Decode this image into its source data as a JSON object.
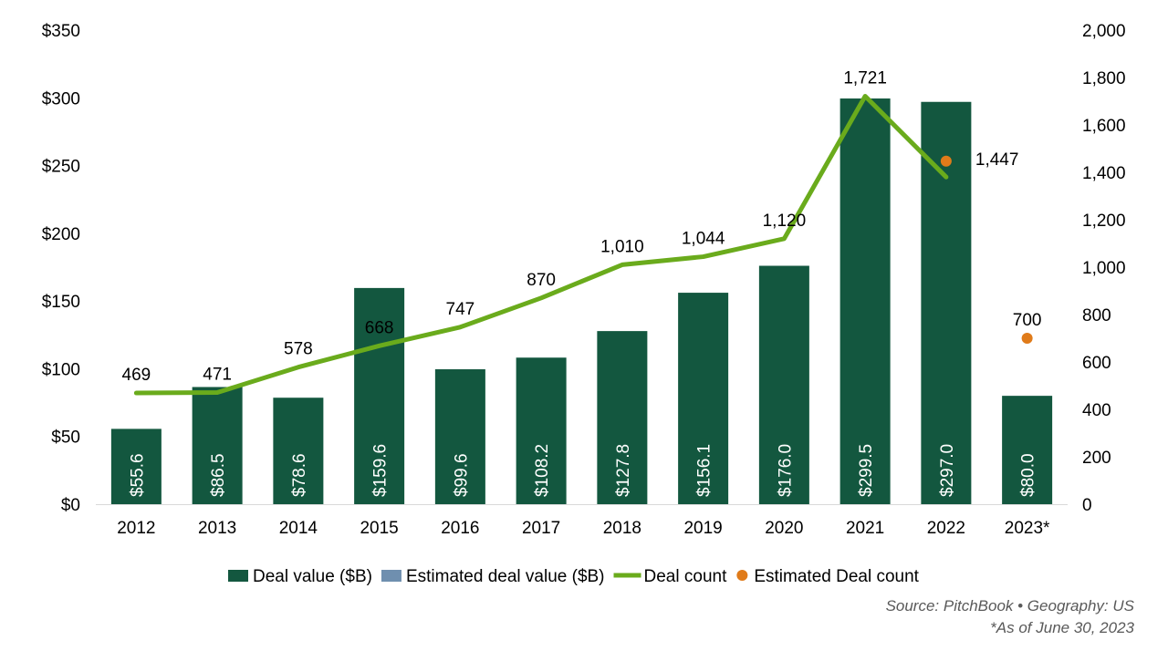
{
  "chart_data": {
    "type": "bar",
    "categories": [
      "2012",
      "2013",
      "2014",
      "2015",
      "2016",
      "2017",
      "2018",
      "2019",
      "2020",
      "2021",
      "2022",
      "2023*"
    ],
    "series": [
      {
        "name": "Deal value ($B)",
        "kind": "bar",
        "axis": "left",
        "color": "#13573f",
        "values": [
          55.6,
          86.5,
          78.6,
          159.6,
          99.6,
          108.2,
          127.8,
          156.1,
          176.0,
          299.5,
          297.0,
          80.0
        ],
        "labels": [
          "$55.6",
          "$86.5",
          "$78.6",
          "$159.6",
          "$99.6",
          "$108.2",
          "$127.8",
          "$156.1",
          "$176.0",
          "$299.5",
          "$297.0",
          "$80.0"
        ]
      },
      {
        "name": "Estimated deal value ($B)",
        "kind": "bar",
        "axis": "left",
        "color": "#6f8faf",
        "values": [
          null,
          null,
          null,
          null,
          null,
          null,
          null,
          null,
          null,
          null,
          null,
          null
        ]
      },
      {
        "name": "Deal count",
        "kind": "line",
        "axis": "right",
        "color": "#6aab1c",
        "values": [
          469,
          471,
          578,
          668,
          747,
          870,
          1010,
          1044,
          1120,
          1721,
          1380,
          null
        ],
        "labels": [
          "469",
          "471",
          "578",
          "668",
          "747",
          "870",
          "1,010",
          "1,044",
          "1,120",
          "1,721",
          "",
          ""
        ]
      },
      {
        "name": "Estimated Deal count",
        "kind": "scatter",
        "axis": "right",
        "color": "#e07b1a",
        "values": [
          null,
          null,
          null,
          null,
          null,
          null,
          null,
          null,
          null,
          null,
          1447,
          700
        ],
        "labels": [
          "",
          "",
          "",
          "",
          "",
          "",
          "",
          "",
          "",
          "",
          "1,447",
          "700"
        ]
      }
    ],
    "y_left": {
      "min": 0,
      "max": 350,
      "ticks": [
        "$0",
        "$50",
        "$100",
        "$150",
        "$200",
        "$250",
        "$300",
        "$350"
      ]
    },
    "y_right": {
      "min": 0,
      "max": 2000,
      "ticks": [
        "0",
        "200",
        "400",
        "600",
        "800",
        "1,000",
        "1,200",
        "1,400",
        "1,600",
        "1,800",
        "2,000"
      ]
    },
    "grid": false,
    "legend_position": "bottom"
  },
  "footnotes": {
    "source": "Source: PitchBook •  Geography: US",
    "asof": "*As of June 30, 2023"
  }
}
